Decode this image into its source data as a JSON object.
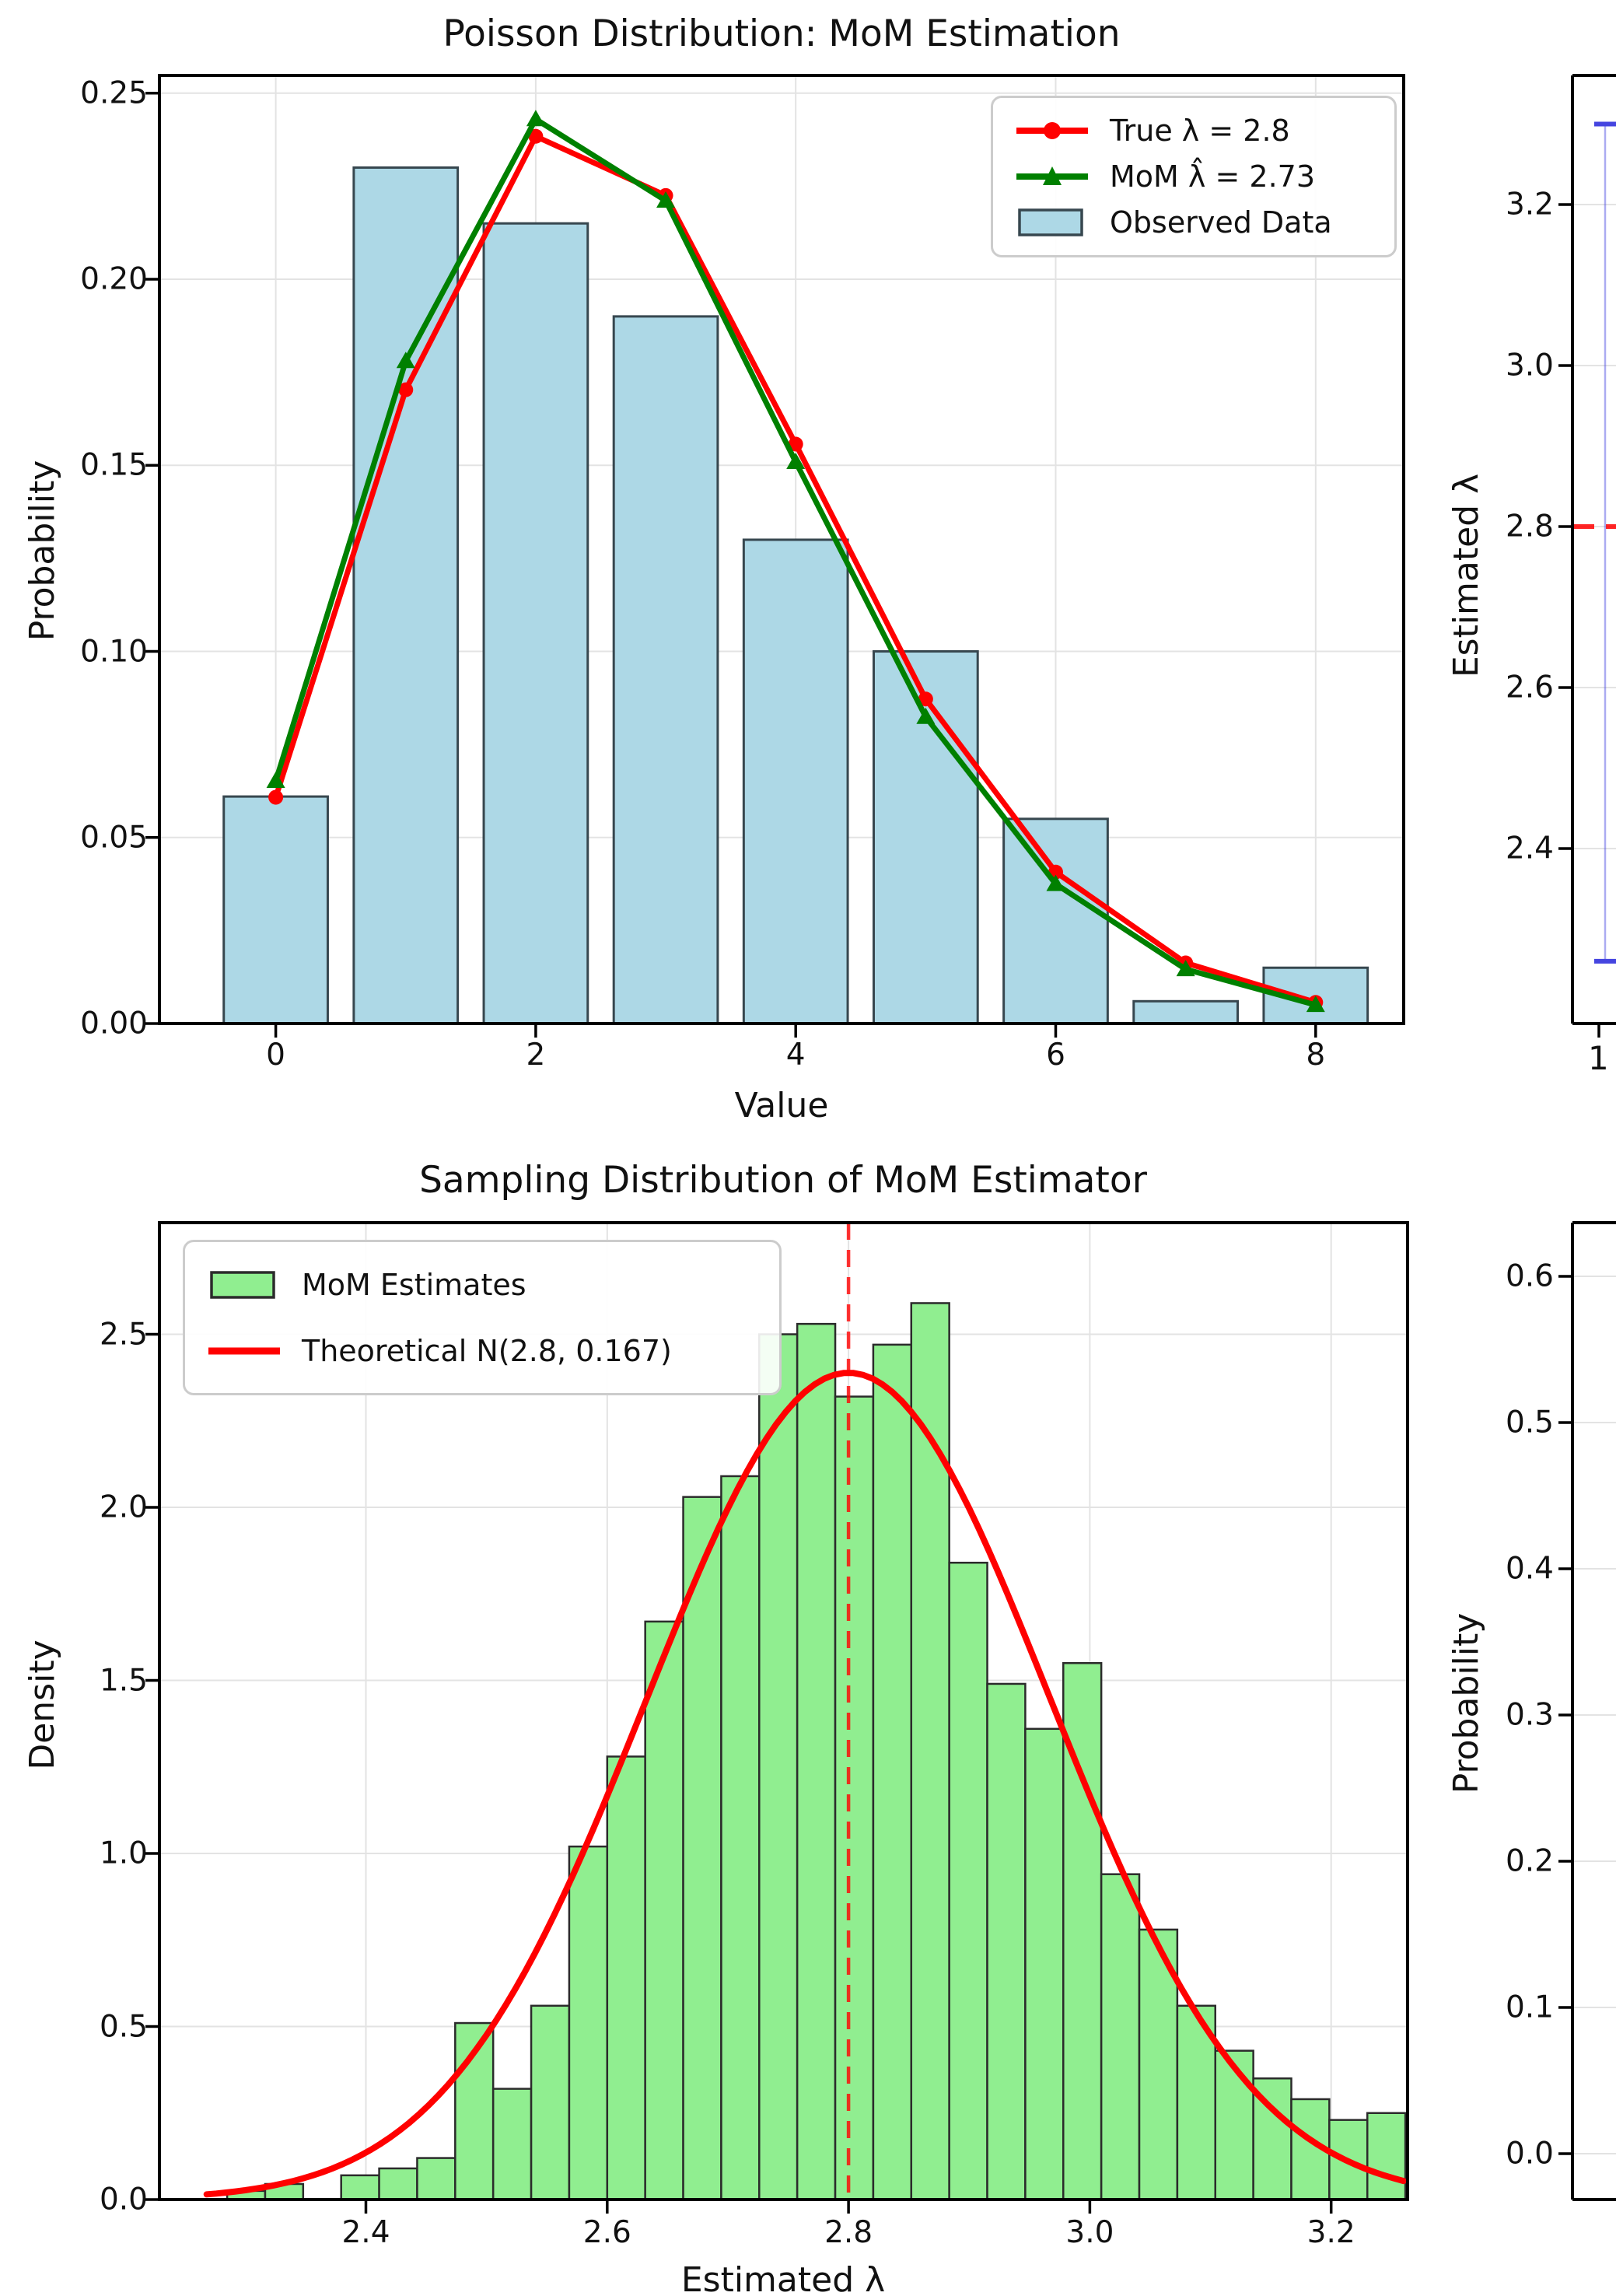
{
  "figure": {
    "background": "#ffffff",
    "grid_color": "#e3e3e3",
    "text_color": "#111111"
  },
  "chart_data": [
    {
      "id": "poisson-pmf",
      "type": "bar+line",
      "title": "Poisson Distribution: MoM Estimation",
      "xlabel": "Value",
      "ylabel": "Probability",
      "x": [
        0,
        1,
        2,
        3,
        4,
        5,
        6,
        7,
        8
      ],
      "xticks": [
        0,
        2,
        4,
        6,
        8
      ],
      "xtick_labels": [
        "0",
        "2",
        "4",
        "6",
        "8"
      ],
      "yticks": [
        0,
        0.05,
        0.1,
        0.15,
        0.2,
        0.25
      ],
      "ytick_labels": [
        "0.00",
        "0.05",
        "0.10",
        "0.15",
        "0.20",
        "0.25"
      ],
      "xlim": [
        -0.9,
        8.68
      ],
      "ylim": [
        0,
        0.2553
      ],
      "grid": true,
      "legend_position": "upper right",
      "series": [
        {
          "name": "True λ = 2.8",
          "type": "line",
          "marker": "circle",
          "color": "#ff0000",
          "values": [
            0.0608,
            0.1703,
            0.2384,
            0.2225,
            0.1557,
            0.0872,
            0.0407,
            0.0163,
            0.0057
          ]
        },
        {
          "name": "MoM λ̂ = 2.73",
          "type": "line",
          "marker": "triangle",
          "color": "#008000",
          "values": [
            0.0652,
            0.178,
            0.243,
            0.2211,
            0.1509,
            0.0824,
            0.0375,
            0.0146,
            0.005
          ]
        },
        {
          "name": "Observed Data",
          "type": "bar",
          "color": "#add8e6",
          "edge_color": "#37474f",
          "bar_width": 0.8,
          "values": [
            0.061,
            0.23,
            0.215,
            0.19,
            0.13,
            0.1,
            0.055,
            0.006,
            0.015
          ]
        }
      ]
    },
    {
      "id": "estimated-lambda-vs-sample-size-cropped",
      "type": "errorbar",
      "ylabel": "Estimated λ",
      "yticks": [
        3.2,
        3.0,
        2.8,
        2.6,
        2.4
      ],
      "ytick_labels": [
        "3.2",
        "3.0",
        "2.8",
        "2.6",
        "2.4"
      ],
      "visible_xtick_label": "1",
      "reference_line": {
        "y": 2.8,
        "color": "#ff0000",
        "style": "dashed"
      },
      "errorbar": {
        "color": "#4545e0",
        "visible_cap_top": 3.3,
        "visible_cap_bottom": 2.26
      },
      "grid": true
    },
    {
      "id": "sampling-distribution",
      "type": "histogram+curve",
      "title": "Sampling Distribution of MoM Estimator",
      "xlabel": "Estimated λ",
      "ylabel": "Density",
      "xticks": [
        2.4,
        2.6,
        2.8,
        3.0,
        3.2
      ],
      "xtick_labels": [
        "2.4",
        "2.6",
        "2.8",
        "3.0",
        "3.2"
      ],
      "yticks": [
        0,
        0.5,
        1.0,
        1.5,
        2.0,
        2.5
      ],
      "ytick_labels": [
        "0.0",
        "0.5",
        "1.0",
        "1.5",
        "2.0",
        "2.5"
      ],
      "xlim": [
        2.229,
        3.264
      ],
      "ylim": [
        0,
        2.82
      ],
      "grid": true,
      "hist": {
        "label": "MoM Estimates",
        "color": "#90ee90",
        "edge_color": "#2b2b2b",
        "bin_start": 2.285,
        "bin_width": 0.0315,
        "densities": [
          0.025,
          0.045,
          0,
          0.07,
          0.09,
          0.12,
          0.51,
          0.32,
          0.56,
          1.02,
          1.28,
          1.67,
          2.03,
          2.09,
          2.5,
          2.53,
          2.32,
          2.47,
          2.59,
          1.84,
          1.49,
          1.36,
          1.55,
          0.94,
          0.78,
          0.56,
          0.43,
          0.35,
          0.29,
          0.23,
          0.25
        ]
      },
      "curve": {
        "label": "Theoretical N(2.8, 0.167)",
        "mean": 2.8,
        "sigma": 0.167,
        "color": "#ff0000"
      },
      "mean_line": {
        "x": 2.8,
        "color": "#ff0000",
        "style": "dashed"
      },
      "legend_position": "upper left"
    },
    {
      "id": "pmf-comparison-cropped",
      "type": "bar",
      "ylabel": "Probability",
      "yticks": [
        0.6,
        0.5,
        0.4,
        0.3,
        0.2,
        0.1,
        0.0
      ],
      "ytick_labels": [
        "0.6",
        "0.5",
        "0.4",
        "0.3",
        "0.2",
        "0.1",
        "0.0"
      ],
      "grid": true
    }
  ]
}
